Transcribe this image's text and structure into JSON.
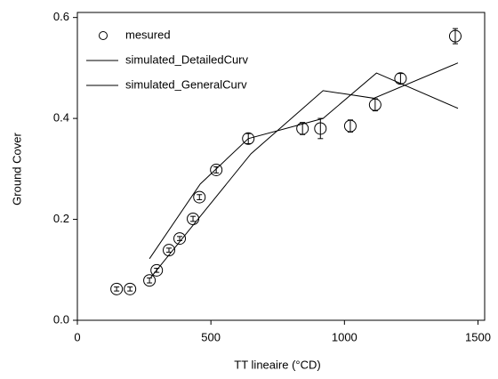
{
  "chart_data": {
    "type": "scatter-line",
    "xlabel": "TT lineaire (°CD)",
    "ylabel": "Ground Cover",
    "xlim": [
      0,
      1525
    ],
    "ylim": [
      0,
      0.61
    ],
    "xticks": [
      0,
      500,
      1000,
      1500
    ],
    "yticks": [
      {
        "value": 0,
        "label": "0.0"
      },
      0.2,
      0.4,
      0.6
    ],
    "legend": "upper left",
    "series": [
      {
        "name": "mesured",
        "kind": "markers",
        "color": "#000000",
        "x": [
          147,
          197,
          270,
          297,
          343,
          383,
          433,
          457,
          520,
          640,
          843,
          910,
          1022,
          1115,
          1210,
          1415
        ],
        "values": [
          0.062,
          0.062,
          0.079,
          0.099,
          0.139,
          0.162,
          0.201,
          0.244,
          0.298,
          0.36,
          0.38,
          0.38,
          0.385,
          0.427,
          0.479,
          0.563
        ],
        "errors": [
          0.004,
          0.004,
          0.005,
          0.004,
          0.004,
          0.004,
          0.005,
          0.005,
          0.006,
          0.01,
          0.012,
          0.02,
          0.012,
          0.012,
          0.01,
          0.015
        ]
      },
      {
        "name": "simulated_DetailedCurv",
        "kind": "line",
        "color": "#000000",
        "x": [
          270,
          460,
          640,
          920,
          1120,
          1425
        ],
        "values": [
          0.122,
          0.27,
          0.36,
          0.4,
          0.49,
          0.42
        ]
      },
      {
        "name": "simulated_GeneralCurv",
        "kind": "line",
        "color": "#000000",
        "x": [
          275,
          650,
          920,
          1110,
          1425
        ],
        "values": [
          0.085,
          0.33,
          0.455,
          0.44,
          0.51
        ]
      }
    ]
  }
}
